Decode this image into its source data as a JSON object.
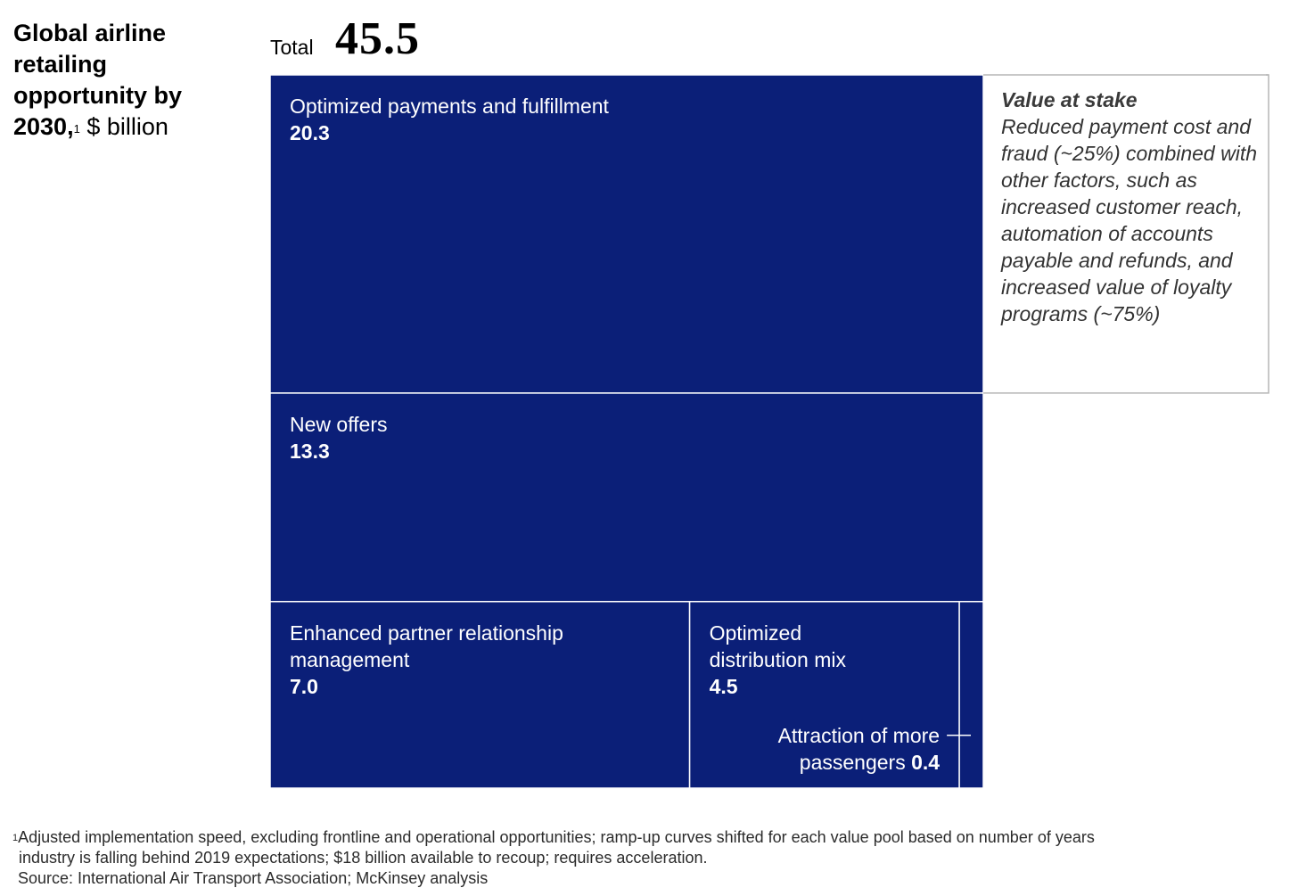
{
  "title": {
    "text": "Global airline retailing opportunity by 2030,",
    "footnote_marker": "1",
    "unit": "$ billion"
  },
  "total": {
    "label": "Total",
    "value": "45.5"
  },
  "callout": {
    "heading": "Value at stake",
    "body": "Reduced payment cost and fraud (~25%) combined with other factors, such as increased customer reach, automation of accounts payable and refunds, and increased value of loyalty programs (~75%)"
  },
  "colors": {
    "tile_fill": "#0b1f78",
    "tile_border": "#ffffff",
    "callout_border": "#b5b5b5"
  },
  "chart_data": {
    "type": "treemap",
    "total": 45.5,
    "items": [
      {
        "name": "Optimized payments and fulfillment",
        "value": 20.3,
        "label_value": "20.3"
      },
      {
        "name": "New offers",
        "value": 13.3,
        "label_value": "13.3"
      },
      {
        "name": "Enhanced partner relationship management",
        "value": 7.0,
        "label_value": "7.0"
      },
      {
        "name": "Optimized distribution mix",
        "value": 4.5,
        "label_value": "4.5"
      },
      {
        "name": "Attraction of more passengers",
        "value": 0.4,
        "label_value": "0.4"
      }
    ]
  },
  "footnotes": {
    "marker": "1",
    "line1": "Adjusted implementation speed, excluding frontline and operational opportunities; ramp-up curves shifted for each value pool based on number of years",
    "line2": "industry is falling behind 2019 expectations; $18 billion available to recoup; requires acceleration.",
    "source": "Source: International Air Transport Association; McKinsey analysis"
  }
}
